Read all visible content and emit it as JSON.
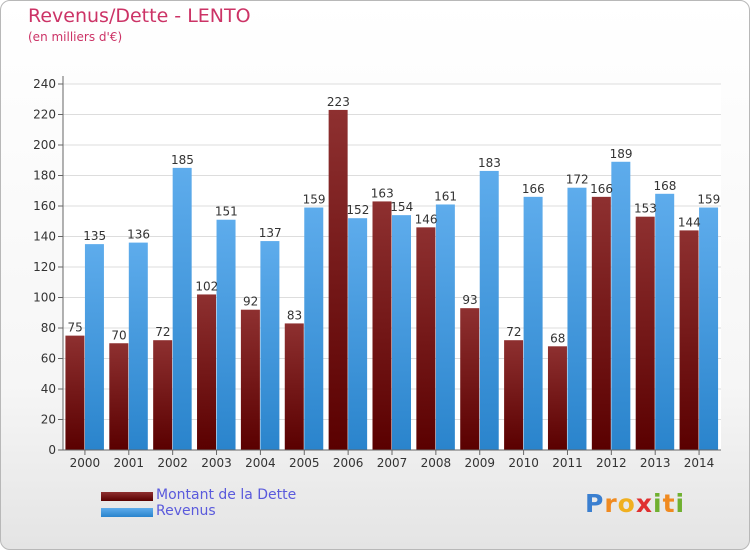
{
  "header": {
    "title": "Revenus/Dette - LENTO",
    "subtitle": "(en milliers d'€)"
  },
  "chart_data": {
    "type": "bar",
    "categories": [
      "2000",
      "2001",
      "2002",
      "2003",
      "2004",
      "2005",
      "2006",
      "2007",
      "2008",
      "2009",
      "2010",
      "2011",
      "2012",
      "2013",
      "2014"
    ],
    "series": [
      {
        "name": "Montant de la Dette",
        "color": "#7a1c1c",
        "values": [
          75,
          70,
          72,
          102,
          92,
          83,
          223,
          163,
          146,
          93,
          72,
          68,
          166,
          153,
          144
        ]
      },
      {
        "name": "Revenus",
        "color": "#4a9de0",
        "values": [
          135,
          136,
          185,
          151,
          137,
          159,
          152,
          154,
          161,
          183,
          166,
          172,
          189,
          168,
          159
        ]
      }
    ],
    "ylim": [
      0,
      240
    ],
    "yticks": [
      0,
      20,
      40,
      60,
      80,
      100,
      120,
      140,
      160,
      180,
      200,
      220,
      240
    ],
    "grid": true
  },
  "legend": [
    {
      "label": "Montant de la Dette"
    },
    {
      "label": "Revenus"
    }
  ],
  "logo": {
    "letters": [
      "P",
      "r",
      "o",
      "x",
      "i",
      "t",
      "i"
    ],
    "colors": [
      "#3a7fd0",
      "#f08a20",
      "#f0b020",
      "#e03030",
      "#70b030",
      "#f08a20",
      "#70b030"
    ]
  }
}
